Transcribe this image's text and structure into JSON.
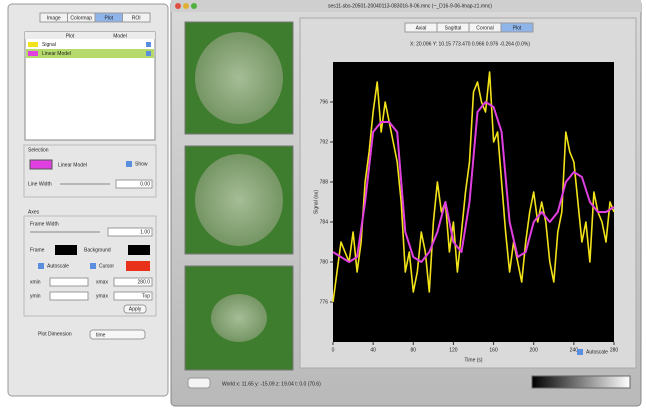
{
  "left_panel": {
    "tabs": [
      "Image",
      "Colormap",
      "Plot",
      "ROI"
    ],
    "list_headers": [
      "Plot",
      "Model"
    ],
    "selection_label": "Selection",
    "model_label": "Linear Model",
    "show_label": "Show",
    "line_width_label": "Line Width",
    "line_width_value": "0.00",
    "axes_label": "Axes",
    "frame_width_label": "Frame Width",
    "frame_width_value": "1.00",
    "frame_label": "Frame",
    "background_label": "Background",
    "autoscale_label": "Autoscale",
    "cursor_label": "Cursor",
    "xmin_label": "xmin",
    "xmax_label": "xmax",
    "xmax_value": "280.0",
    "ymin_label": "ymin",
    "ymax_label": "ymax",
    "ymax_value": "Top",
    "apply_label": "Apply",
    "plot_dimension_label": "Plot Dimension",
    "plot_dimension_value": "time"
  },
  "main_window": {
    "title": "ses11-sbs-20501-20040113-083016-9-06.mnc (~_D16-9-06-lmap-z1.mnc)",
    "view_tabs": [
      "Axial",
      "Sagittal",
      "Coronal",
      "Plot"
    ],
    "info": "X: 20.096 Y: 10.15 773.470 0.966 0.976 -0.264 (0.0%)",
    "status": "World x: 11.65  y: -15.09  z: 19.04  t: 0.0  (70.6)",
    "autoscale_label": "Autoscale",
    "plot": {
      "type": "line",
      "x_label": "Time (s)",
      "y_label": "Signal (au)",
      "xlim": [
        0,
        280
      ],
      "ylim": [
        772,
        800
      ],
      "xticks": [
        0,
        40,
        80,
        120,
        160,
        200,
        240,
        280
      ],
      "yticks": [
        776,
        780,
        784,
        788,
        792,
        796
      ],
      "series": [
        {
          "name": "Signal",
          "color": "#f2e21a",
          "x": [
            0,
            4,
            8,
            12,
            16,
            20,
            24,
            28,
            32,
            36,
            40,
            44,
            48,
            52,
            56,
            60,
            64,
            68,
            72,
            76,
            80,
            84,
            88,
            92,
            96,
            100,
            104,
            108,
            112,
            116,
            120,
            124,
            128,
            132,
            136,
            140,
            144,
            148,
            152,
            156,
            160,
            164,
            168,
            172,
            176,
            180,
            184,
            188,
            192,
            196,
            200,
            204,
            208,
            212,
            216,
            220,
            224,
            228,
            232,
            236,
            240,
            244,
            248,
            252,
            256,
            260,
            264,
            268,
            272,
            276,
            280
          ],
          "values": [
            776,
            779,
            782,
            781,
            780,
            783,
            779,
            782,
            788,
            791,
            795,
            798,
            793,
            796,
            794,
            792,
            790,
            786,
            779,
            781,
            777,
            779,
            783,
            781,
            777,
            784,
            788,
            785,
            786,
            781,
            784,
            779,
            783,
            787,
            790,
            797,
            798,
            796,
            795,
            799,
            792,
            793,
            788,
            783,
            779,
            782,
            780,
            778,
            782,
            785,
            787,
            784,
            786,
            784,
            780,
            778,
            783,
            785,
            793,
            791,
            790,
            786,
            782,
            784,
            780,
            787,
            785,
            784,
            782,
            786,
            785
          ]
        },
        {
          "name": "Linear Model",
          "color": "#e040e0",
          "x": [
            0,
            8,
            16,
            24,
            32,
            40,
            48,
            56,
            64,
            72,
            80,
            88,
            96,
            104,
            112,
            120,
            128,
            136,
            144,
            152,
            160,
            168,
            176,
            184,
            192,
            200,
            208,
            216,
            224,
            232,
            240,
            248,
            256,
            264,
            272,
            280
          ],
          "values": [
            781,
            780.5,
            780,
            780.5,
            786,
            793,
            794,
            794,
            793,
            783,
            780.5,
            780,
            781,
            783,
            786,
            782,
            781,
            786,
            795,
            796,
            795.5,
            793,
            784,
            780.5,
            781,
            784,
            785,
            784,
            785,
            788,
            789,
            788.5,
            786,
            785,
            785,
            785.5
          ]
        }
      ]
    }
  }
}
